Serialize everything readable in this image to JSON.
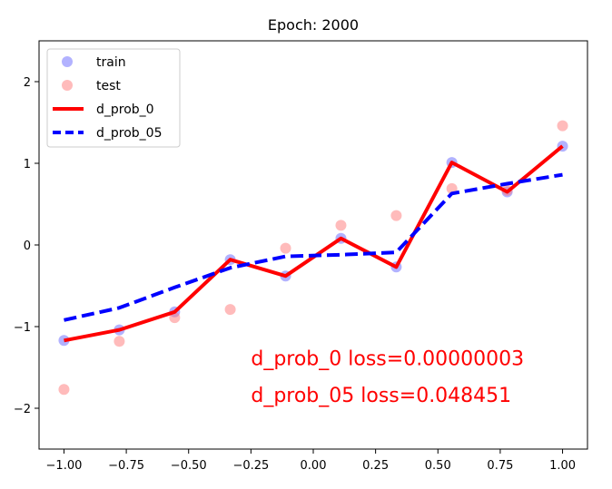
{
  "chart_data": {
    "type": "scatter",
    "title": "Epoch: 2000",
    "xlabel": "",
    "ylabel": "",
    "xlim": [
      -1.1,
      1.1
    ],
    "ylim": [
      -2.5,
      2.5
    ],
    "x_ticks": [
      -1.0,
      -0.75,
      -0.5,
      -0.25,
      0.0,
      0.25,
      0.5,
      0.75,
      1.0
    ],
    "x_tick_labels": [
      "−1.00",
      "−0.75",
      "−0.50",
      "−0.25",
      "0.00",
      "0.25",
      "0.50",
      "0.75",
      "1.00"
    ],
    "y_ticks": [
      -2,
      -1,
      0,
      1,
      2
    ],
    "y_tick_labels": [
      "−2",
      "−1",
      "0",
      "1",
      "2"
    ],
    "grid": false,
    "legend_position": "top-left",
    "series": [
      {
        "name": "train",
        "kind": "scatter",
        "color": "#6666ff",
        "x": [
          -1.0,
          -0.778,
          -0.556,
          -0.333,
          -0.111,
          0.111,
          0.333,
          0.556,
          0.778,
          1.0
        ],
        "y": [
          -1.17,
          -1.04,
          -0.82,
          -0.18,
          -0.38,
          0.08,
          -0.27,
          1.01,
          0.65,
          1.21
        ]
      },
      {
        "name": "test",
        "kind": "scatter",
        "color": "#ff7777",
        "x": [
          -1.0,
          -0.778,
          -0.556,
          -0.333,
          -0.111,
          0.111,
          0.333,
          0.556,
          0.778,
          1.0
        ],
        "y": [
          -1.77,
          -1.18,
          -0.89,
          -0.79,
          -0.04,
          0.24,
          0.36,
          0.69,
          0.67,
          1.46
        ]
      },
      {
        "name": "d_prob_0",
        "kind": "line",
        "color": "#ff0000",
        "dash": "solid",
        "x": [
          -1.0,
          -0.778,
          -0.556,
          -0.333,
          -0.111,
          0.111,
          0.333,
          0.556,
          0.778,
          1.0
        ],
        "y": [
          -1.17,
          -1.04,
          -0.82,
          -0.18,
          -0.38,
          0.08,
          -0.27,
          1.01,
          0.65,
          1.21
        ]
      },
      {
        "name": "d_prob_05",
        "kind": "line",
        "color": "#0000ff",
        "dash": "dashed",
        "x": [
          -1.0,
          -0.778,
          -0.556,
          -0.333,
          -0.111,
          0.111,
          0.333,
          0.556,
          0.778,
          1.0
        ],
        "y": [
          -0.92,
          -0.77,
          -0.52,
          -0.28,
          -0.14,
          -0.12,
          -0.09,
          0.63,
          0.75,
          0.86
        ]
      }
    ],
    "annotations": [
      {
        "text": "d_prob_0 loss=0.00000003",
        "color": "#ff0000",
        "x": -0.25,
        "y": -1.47
      },
      {
        "text": "d_prob_05 loss=0.048451",
        "color": "#ff0000",
        "x": -0.25,
        "y": -1.92
      }
    ]
  }
}
